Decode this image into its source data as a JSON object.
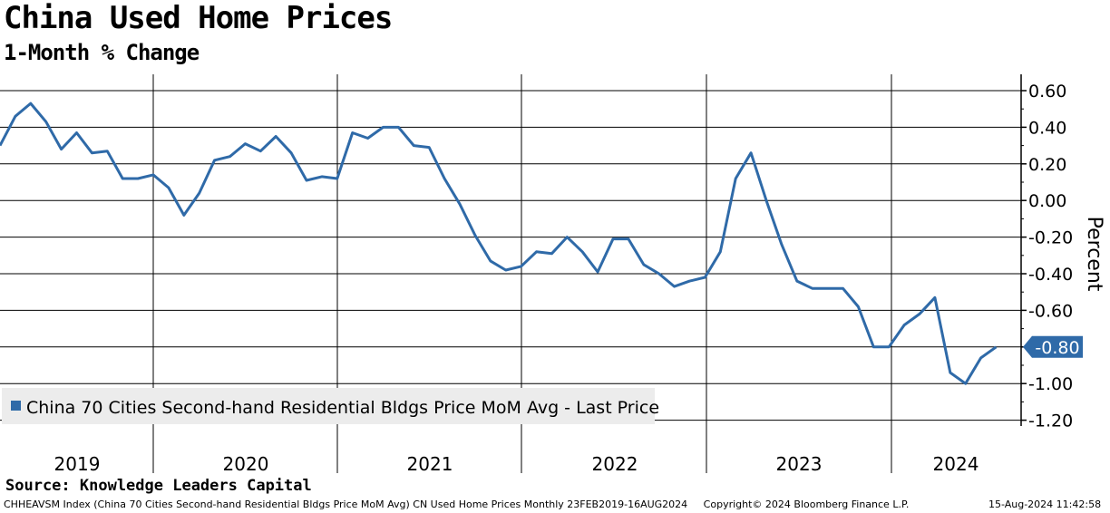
{
  "chart_data": {
    "type": "line",
    "title": "China Used Home Prices",
    "subtitle": "1-Month % Change",
    "ylabel": "Percent",
    "ylim": [
      -1.25,
      0.7
    ],
    "yticks": [
      0.6,
      0.4,
      0.2,
      0.0,
      -0.2,
      -0.4,
      -0.6,
      -0.8,
      -1.0,
      -1.2
    ],
    "ytick_labels": [
      "0.60",
      "0.40",
      "0.20",
      "0.00",
      "-0.20",
      "-0.40",
      "-0.60",
      "-0.80",
      "-1.00",
      "-1.20"
    ],
    "year_labels": [
      "2019",
      "2020",
      "2021",
      "2022",
      "2023",
      "2024"
    ],
    "x_start_month": 1.5,
    "x_end_month": 67.5,
    "last_value_label": "-0.80",
    "legend": "China 70 Cities Second-hand Residential Bldgs Price MoM Avg - Last Price",
    "series": [
      {
        "name": "China 70 Cities Second-hand Residential Bldgs Price MoM Avg - Last Price",
        "color": "#2f6aa8",
        "values": [
          0.3,
          0.46,
          0.53,
          0.43,
          0.28,
          0.37,
          0.26,
          0.27,
          0.12,
          0.12,
          0.14,
          0.07,
          -0.08,
          0.04,
          0.22,
          0.24,
          0.31,
          0.27,
          0.35,
          0.26,
          0.11,
          0.13,
          0.12,
          0.37,
          0.34,
          0.4,
          0.4,
          0.3,
          0.29,
          0.12,
          -0.02,
          -0.19,
          -0.33,
          -0.38,
          -0.36,
          -0.28,
          -0.29,
          -0.2,
          -0.28,
          -0.39,
          -0.21,
          -0.21,
          -0.35,
          -0.4,
          -0.47,
          -0.44,
          -0.42,
          -0.28,
          0.12,
          0.26,
          0.0,
          -0.24,
          -0.44,
          -0.48,
          -0.48,
          -0.48,
          -0.58,
          -0.8,
          -0.8,
          -0.68,
          -0.62,
          -0.53,
          -0.94,
          -1.0,
          -0.86,
          -0.8
        ]
      }
    ]
  },
  "source": "Source: Knowledge Leaders Capital",
  "footer": {
    "ticker": "CHHEAVSM Index (China 70 Cities  Second-hand Residential Bldgs Price MoM Avg) CN Used Home Prices  Monthly 23FEB2019-16AUG2024",
    "copyright": "Copyright© 2024 Bloomberg Finance L.P.",
    "date": "15-Aug-2024 11:42:58"
  },
  "colors": {
    "line": "#2f6aa8",
    "legend_bg": "#ececec",
    "label_bg": "#2f6aa8"
  }
}
